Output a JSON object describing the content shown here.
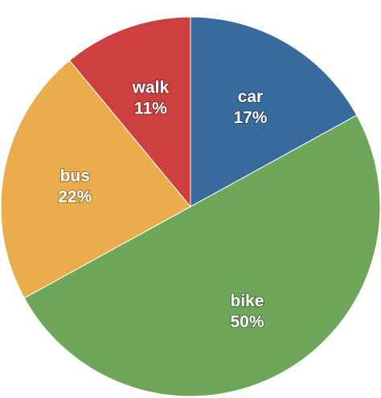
{
  "chart_data": {
    "type": "pie",
    "start_angle_deg": 0,
    "direction": "clockwise",
    "slices": [
      {
        "label": "car",
        "value": 17,
        "value_label": "17%",
        "color": "#386b9d"
      },
      {
        "label": "bike",
        "value": 50,
        "value_label": "50%",
        "color": "#6fa75a"
      },
      {
        "label": "bus",
        "value": 22,
        "value_label": "22%",
        "color": "#ebad4b"
      },
      {
        "label": "walk",
        "value": 11,
        "value_label": "11%",
        "color": "#cd403f"
      }
    ]
  }
}
